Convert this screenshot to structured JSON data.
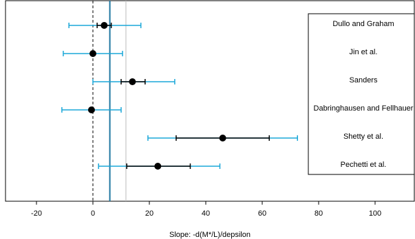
{
  "chart_data": {
    "type": "scatter",
    "subtype": "forest-plot",
    "title": "",
    "xlabel": "Slope: -d(M*/L)/depsilon",
    "ylabel": "",
    "xlim": [
      -30,
      112
    ],
    "x_ticks": [
      -20,
      0,
      20,
      40,
      60,
      80,
      100
    ],
    "grid": false,
    "legend_placement": "top-right",
    "studies": [
      {
        "label": "Dullo and Graham",
        "estimate": 4,
        "ci_inner": [
          1.5,
          6.5
        ],
        "ci_outer": [
          -8.5,
          17
        ]
      },
      {
        "label": "Jin et al.",
        "estimate": 0,
        "ci_inner": [
          -0.5,
          0.5
        ],
        "ci_outer": [
          -10.5,
          10.5
        ]
      },
      {
        "label": "Sanders",
        "estimate": 14,
        "ci_inner": [
          10,
          18.5
        ],
        "ci_outer": [
          0,
          29
        ]
      },
      {
        "label": "Dabringhausen and Fellhauer",
        "estimate": -0.5,
        "ci_inner": [
          -1,
          0
        ],
        "ci_outer": [
          -11,
          10
        ]
      },
      {
        "label": "Shetty et al.",
        "estimate": 46,
        "ci_inner": [
          29.5,
          62.5
        ],
        "ci_outer": [
          19.5,
          72.5
        ]
      },
      {
        "label": "Pechetti et al.",
        "estimate": 23,
        "ci_inner": [
          12,
          34.5
        ],
        "ci_outer": [
          2,
          45
        ]
      }
    ],
    "reference_lines": [
      {
        "x": 0,
        "style": "dashed",
        "color": "#000000"
      },
      {
        "x": 6,
        "style": "solid",
        "color": "#1f77a0"
      },
      {
        "x": 11.7,
        "style": "solid",
        "color": "#bbbbbb"
      }
    ],
    "colors": {
      "outer_ci": "#1aa7d8",
      "inner_ci": "#000000",
      "point": "#000000",
      "pooled_line": "#1f77a0",
      "upper_line": "#bbbbbb"
    }
  }
}
